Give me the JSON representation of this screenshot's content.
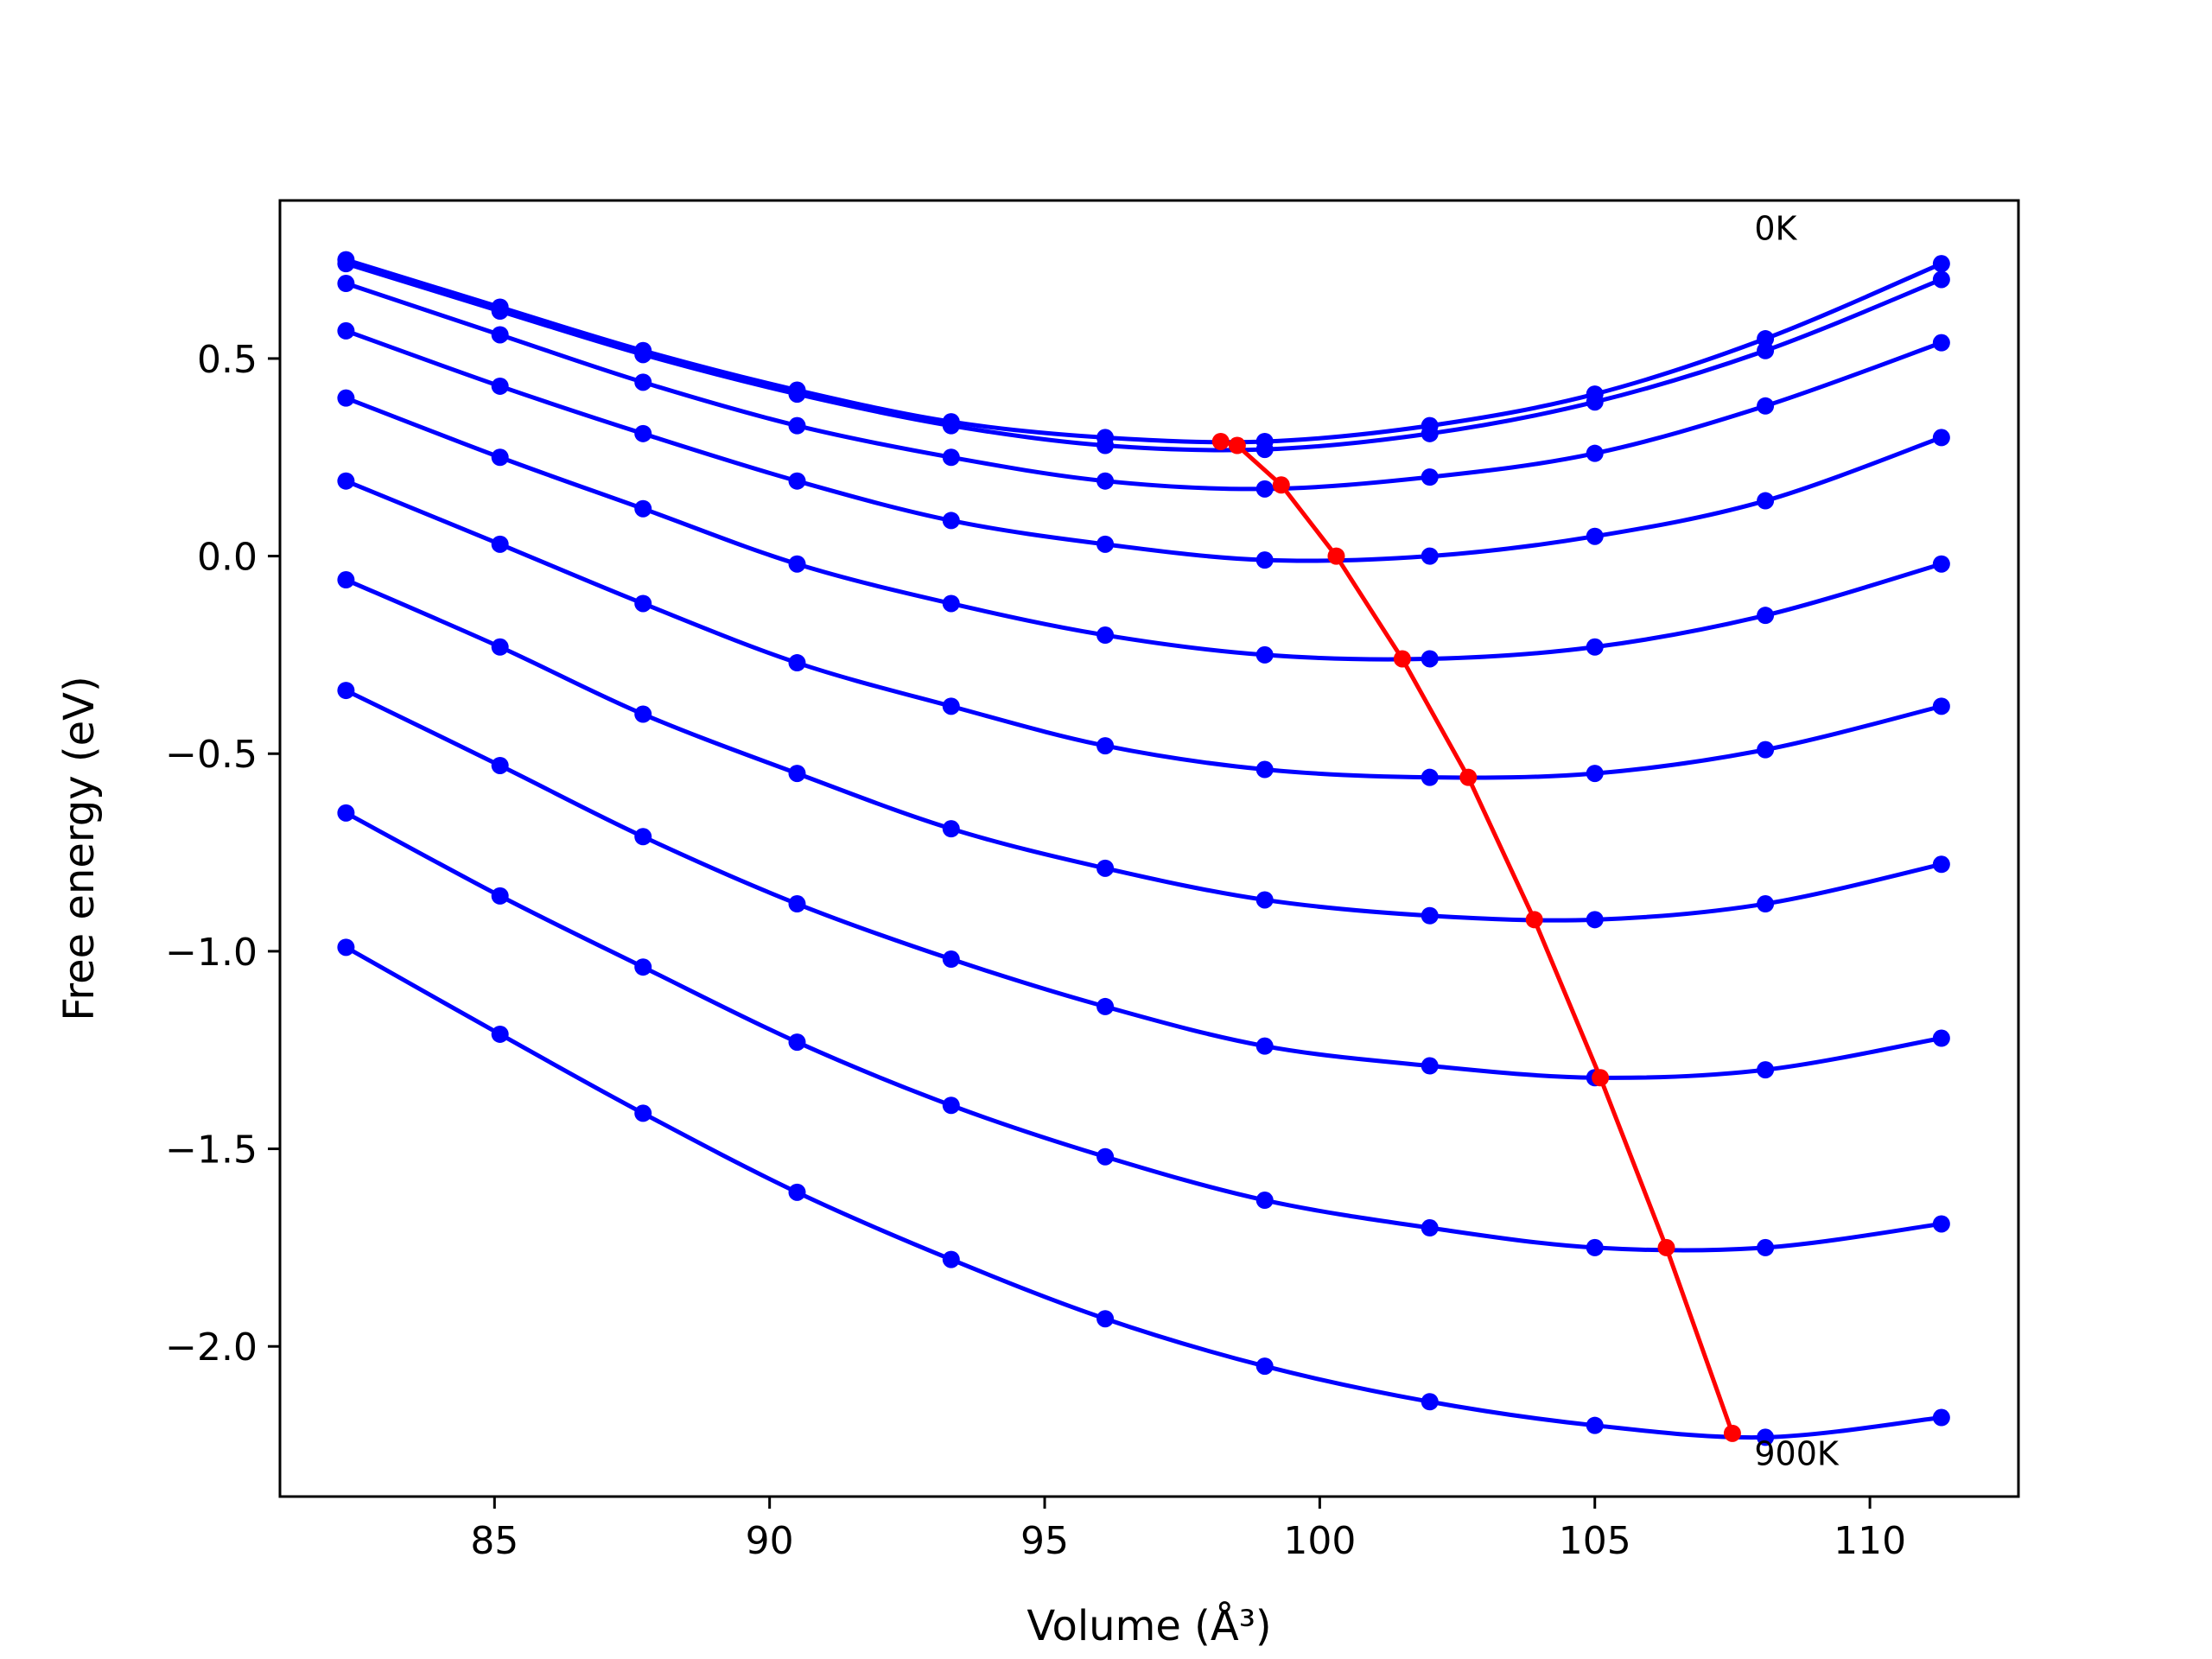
{
  "chart_data": {
    "type": "line",
    "xlabel": "Volume (Å³)",
    "ylabel": "Free energy (eV)",
    "xlim": [
      81.1,
      112.7
    ],
    "ylim": [
      -2.38,
      0.9
    ],
    "xticks": [
      85,
      90,
      95,
      100,
      105,
      110
    ],
    "xtick_labels": [
      "85",
      "90",
      "95",
      "100",
      "105",
      "110"
    ],
    "yticks": [
      0.5,
      0.0,
      -0.5,
      -1.0,
      -1.5,
      -2.0
    ],
    "ytick_labels": [
      "0.5",
      "0.0",
      "−0.5",
      "−1.0",
      "−1.5",
      "−2.0"
    ],
    "grid": false,
    "legend": "none",
    "annotations": [
      {
        "text": "0K",
        "x": 107.9,
        "y": 0.8
      },
      {
        "text": "900K",
        "x": 107.9,
        "y": -2.3
      }
    ],
    "x": [
      82.3,
      85.1,
      87.7,
      90.5,
      93.3,
      96.1,
      99.0,
      102.0,
      105.0,
      108.1,
      111.3
    ],
    "series": [
      {
        "color": "#0000ff",
        "values": [
          0.75,
          0.63,
          0.52,
          0.42,
          0.34,
          0.3,
          0.29,
          0.33,
          0.41,
          0.55,
          0.74
        ]
      },
      {
        "color": "#0000ff",
        "values": [
          0.74,
          0.62,
          0.51,
          0.41,
          0.33,
          0.28,
          0.27,
          0.31,
          0.39,
          0.52,
          0.7
        ]
      },
      {
        "color": "#0000ff",
        "values": [
          0.69,
          0.56,
          0.44,
          0.33,
          0.25,
          0.19,
          0.17,
          0.2,
          0.26,
          0.38,
          0.54
        ]
      },
      {
        "color": "#0000ff",
        "values": [
          0.57,
          0.43,
          0.31,
          0.19,
          0.09,
          0.03,
          -0.01,
          0.0,
          0.05,
          0.14,
          0.3
        ]
      },
      {
        "color": "#0000ff",
        "values": [
          0.4,
          0.25,
          0.12,
          -0.02,
          -0.12,
          -0.2,
          -0.25,
          -0.26,
          -0.23,
          -0.15,
          -0.02
        ]
      },
      {
        "color": "#0000ff",
        "values": [
          0.19,
          0.03,
          -0.12,
          -0.27,
          -0.38,
          -0.48,
          -0.54,
          -0.56,
          -0.55,
          -0.49,
          -0.38
        ]
      },
      {
        "color": "#0000ff",
        "values": [
          -0.06,
          -0.23,
          -0.4,
          -0.55,
          -0.69,
          -0.79,
          -0.87,
          -0.91,
          -0.92,
          -0.88,
          -0.78
        ]
      },
      {
        "color": "#0000ff",
        "values": [
          -0.34,
          -0.53,
          -0.71,
          -0.88,
          -1.02,
          -1.14,
          -1.24,
          -1.29,
          -1.32,
          -1.3,
          -1.22
        ]
      },
      {
        "color": "#0000ff",
        "values": [
          -0.65,
          -0.86,
          -1.04,
          -1.23,
          -1.39,
          -1.52,
          -1.63,
          -1.7,
          -1.75,
          -1.75,
          -1.69
        ]
      },
      {
        "color": "#0000ff",
        "values": [
          -0.99,
          -1.21,
          -1.41,
          -1.61,
          -1.78,
          -1.93,
          -2.05,
          -2.14,
          -2.2,
          -2.23,
          -2.18
        ]
      }
    ],
    "minimum_curve": {
      "color": "#ff0000",
      "x": [
        98.2,
        98.5,
        99.3,
        100.3,
        101.5,
        102.7,
        103.9,
        105.1,
        106.3,
        107.5
      ],
      "y": [
        0.29,
        0.28,
        0.18,
        0.0,
        -0.26,
        -0.56,
        -0.92,
        -1.32,
        -1.75,
        -2.22
      ]
    }
  }
}
